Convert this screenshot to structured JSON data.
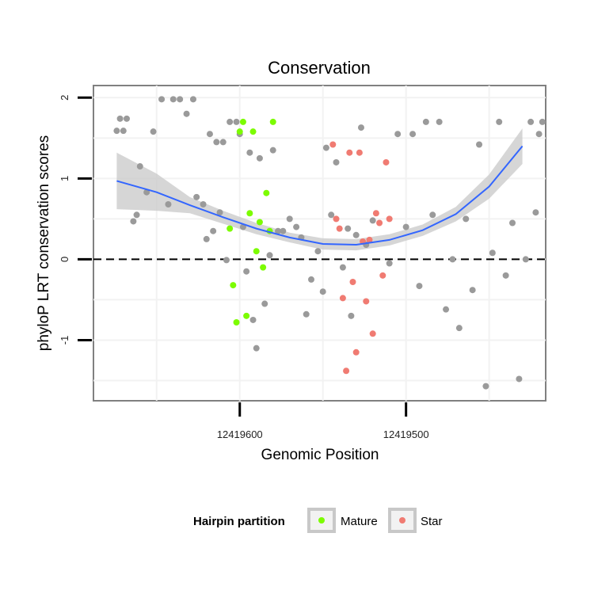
{
  "chart_data": {
    "type": "scatter",
    "title": "Conservation",
    "xlabel": "Genomic Position",
    "ylabel": "phyloP LRT conservation scores",
    "x_tick_labels": [
      "12419600",
      "12419500"
    ],
    "x_tick_values": [
      12419600,
      12419500
    ],
    "x_reversed": true,
    "xlim": [
      12419688,
      12419416
    ],
    "y_tick_labels": [
      "-1",
      "0",
      "1",
      "2"
    ],
    "y_tick_values": [
      -1,
      0,
      1,
      2
    ],
    "ylim": [
      -1.75,
      2.15
    ],
    "reference_line": {
      "y": 0,
      "style": "dashed"
    },
    "grid": true,
    "legend": {
      "title": "Hairpin partition",
      "position": "bottom",
      "entries": [
        {
          "label": "Mature",
          "color": "#7cfc00"
        },
        {
          "label": "Star",
          "color": "#f07b72"
        }
      ]
    },
    "colors": {
      "other": "#9a9a9a",
      "mature": "#7cfc00",
      "star": "#f07b72",
      "smooth_line": "#3366ff",
      "confidence_band": "#c8c8c8"
    },
    "smooth": {
      "x": [
        12419674,
        12419650,
        12419630,
        12419610,
        12419590,
        12419570,
        12419550,
        12419530,
        12419510,
        12419490,
        12419470,
        12419450,
        12419430
      ],
      "y": [
        0.97,
        0.83,
        0.67,
        0.52,
        0.38,
        0.27,
        0.19,
        0.18,
        0.24,
        0.36,
        0.56,
        0.9,
        1.4
      ],
      "lower": [
        0.62,
        0.6,
        0.57,
        0.44,
        0.31,
        0.21,
        0.12,
        0.11,
        0.17,
        0.29,
        0.47,
        0.75,
        1.18
      ],
      "upper": [
        1.32,
        1.06,
        0.77,
        0.6,
        0.45,
        0.33,
        0.26,
        0.25,
        0.31,
        0.43,
        0.65,
        1.05,
        1.62
      ]
    },
    "series": [
      {
        "name": "",
        "group": "other",
        "points": [
          [
            12419674,
            1.59
          ],
          [
            12419672,
            1.74
          ],
          [
            12419670,
            1.59
          ],
          [
            12419668,
            1.74
          ],
          [
            12419664,
            0.47
          ],
          [
            12419662,
            0.55
          ],
          [
            12419660,
            1.15
          ],
          [
            12419656,
            0.83
          ],
          [
            12419652,
            1.58
          ],
          [
            12419647,
            1.98
          ],
          [
            12419643,
            0.68
          ],
          [
            12419640,
            1.98
          ],
          [
            12419636,
            1.98
          ],
          [
            12419632,
            1.8
          ],
          [
            12419628,
            1.98
          ],
          [
            12419626,
            0.77
          ],
          [
            12419622,
            0.68
          ],
          [
            12419620,
            0.25
          ],
          [
            12419618,
            1.55
          ],
          [
            12419616,
            0.35
          ],
          [
            12419614,
            1.45
          ],
          [
            12419612,
            0.58
          ],
          [
            12419610,
            1.45
          ],
          [
            12419608,
            -0.01
          ],
          [
            12419606,
            1.7
          ],
          [
            12419602,
            1.7
          ],
          [
            12419600,
            1.55
          ],
          [
            12419598,
            0.4
          ],
          [
            12419596,
            -0.15
          ],
          [
            12419594,
            1.32
          ],
          [
            12419592,
            -0.75
          ],
          [
            12419590,
            -1.1
          ],
          [
            12419588,
            1.25
          ],
          [
            12419585,
            -0.55
          ],
          [
            12419582,
            0.05
          ],
          [
            12419580,
            1.35
          ],
          [
            12419577,
            0.35
          ],
          [
            12419574,
            0.35
          ],
          [
            12419570,
            0.5
          ],
          [
            12419566,
            0.4
          ],
          [
            12419563,
            0.27
          ],
          [
            12419560,
            -0.68
          ],
          [
            12419557,
            -0.25
          ],
          [
            12419553,
            0.1
          ],
          [
            12419550,
            -0.4
          ],
          [
            12419548,
            1.38
          ],
          [
            12419545,
            0.55
          ],
          [
            12419542,
            1.2
          ],
          [
            12419538,
            -0.1
          ],
          [
            12419535,
            0.38
          ],
          [
            12419533,
            -0.7
          ],
          [
            12419530,
            0.3
          ],
          [
            12419527,
            1.63
          ],
          [
            12419524,
            0.18
          ],
          [
            12419520,
            0.48
          ],
          [
            12419510,
            -0.05
          ],
          [
            12419505,
            1.55
          ],
          [
            12419500,
            0.4
          ],
          [
            12419496,
            1.55
          ],
          [
            12419492,
            -0.33
          ],
          [
            12419488,
            1.7
          ],
          [
            12419484,
            0.55
          ],
          [
            12419480,
            1.7
          ],
          [
            12419476,
            -0.62
          ],
          [
            12419472,
            0.0
          ],
          [
            12419468,
            -0.85
          ],
          [
            12419464,
            0.5
          ],
          [
            12419460,
            -0.38
          ],
          [
            12419456,
            1.42
          ],
          [
            12419452,
            -1.57
          ],
          [
            12419448,
            0.08
          ],
          [
            12419444,
            1.7
          ],
          [
            12419440,
            -0.2
          ],
          [
            12419436,
            0.45
          ],
          [
            12419432,
            -1.48
          ],
          [
            12419428,
            0.0
          ],
          [
            12419425,
            1.7
          ],
          [
            12419422,
            0.58
          ],
          [
            12419420,
            1.55
          ],
          [
            12419418,
            1.7
          ]
        ]
      },
      {
        "name": "Mature",
        "group": "mature",
        "points": [
          [
            12419606,
            0.38
          ],
          [
            12419604,
            -0.32
          ],
          [
            12419602,
            -0.78
          ],
          [
            12419600,
            1.58
          ],
          [
            12419598,
            1.7
          ],
          [
            12419596,
            -0.7
          ],
          [
            12419594,
            0.57
          ],
          [
            12419592,
            1.58
          ],
          [
            12419590,
            0.1
          ],
          [
            12419588,
            0.46
          ],
          [
            12419586,
            -0.1
          ],
          [
            12419584,
            0.82
          ],
          [
            12419582,
            0.35
          ],
          [
            12419580,
            1.7
          ]
        ]
      },
      {
        "name": "Star",
        "group": "star",
        "points": [
          [
            12419544,
            1.42
          ],
          [
            12419542,
            0.5
          ],
          [
            12419540,
            0.38
          ],
          [
            12419538,
            -0.48
          ],
          [
            12419536,
            -1.38
          ],
          [
            12419534,
            1.32
          ],
          [
            12419532,
            -0.28
          ],
          [
            12419530,
            -1.15
          ],
          [
            12419528,
            1.32
          ],
          [
            12419526,
            0.22
          ],
          [
            12419524,
            -0.52
          ],
          [
            12419522,
            0.24
          ],
          [
            12419520,
            -0.92
          ],
          [
            12419518,
            0.57
          ],
          [
            12419516,
            0.45
          ],
          [
            12419514,
            -0.2
          ],
          [
            12419512,
            1.2
          ],
          [
            12419510,
            0.5
          ]
        ]
      }
    ]
  }
}
